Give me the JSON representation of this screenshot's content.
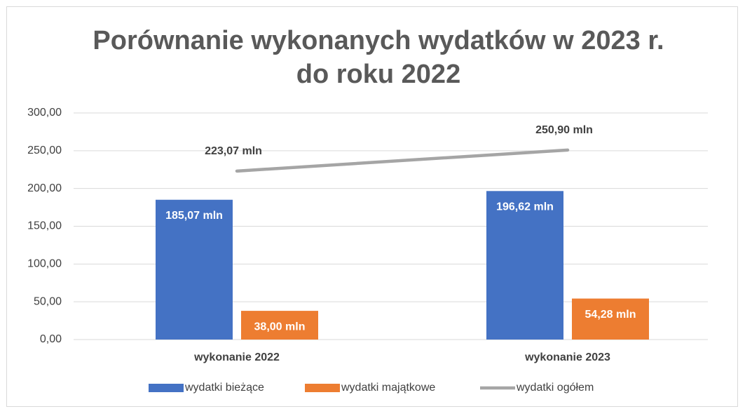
{
  "chart_data": {
    "type": "bar-line",
    "title": [
      "Porównanie wykonanych wydatków w 2023 r.",
      "do roku 2022"
    ],
    "categories": [
      "wykonanie 2022",
      "wykonanie 2023"
    ],
    "series": [
      {
        "name": "wydatki bieżące",
        "type": "bar",
        "color": "#4472c4",
        "values": [
          185.07,
          196.62
        ],
        "value_labels": [
          "185,07 mln",
          "196,62 mln"
        ]
      },
      {
        "name": "wydatki majątkowe",
        "type": "bar",
        "color": "#ed7d31",
        "values": [
          38.0,
          54.28
        ],
        "value_labels": [
          "38,00 mln",
          "54,28 mln"
        ]
      },
      {
        "name": "wydatki ogółem",
        "type": "line",
        "color": "#a5a5a5",
        "values": [
          223.07,
          250.9
        ],
        "value_labels": [
          "223,07 mln",
          "250,90 mln"
        ]
      }
    ],
    "ylim": [
      0,
      300
    ],
    "yticks": [
      {
        "value": 0,
        "label": "0,00"
      },
      {
        "value": 50,
        "label": "50,00"
      },
      {
        "value": 100,
        "label": "100,00"
      },
      {
        "value": 150,
        "label": "150,00"
      },
      {
        "value": 200,
        "label": "200,00"
      },
      {
        "value": 250,
        "label": "250,00"
      },
      {
        "value": 300,
        "label": "300,00"
      }
    ],
    "grid": true,
    "legend": "bottom"
  }
}
